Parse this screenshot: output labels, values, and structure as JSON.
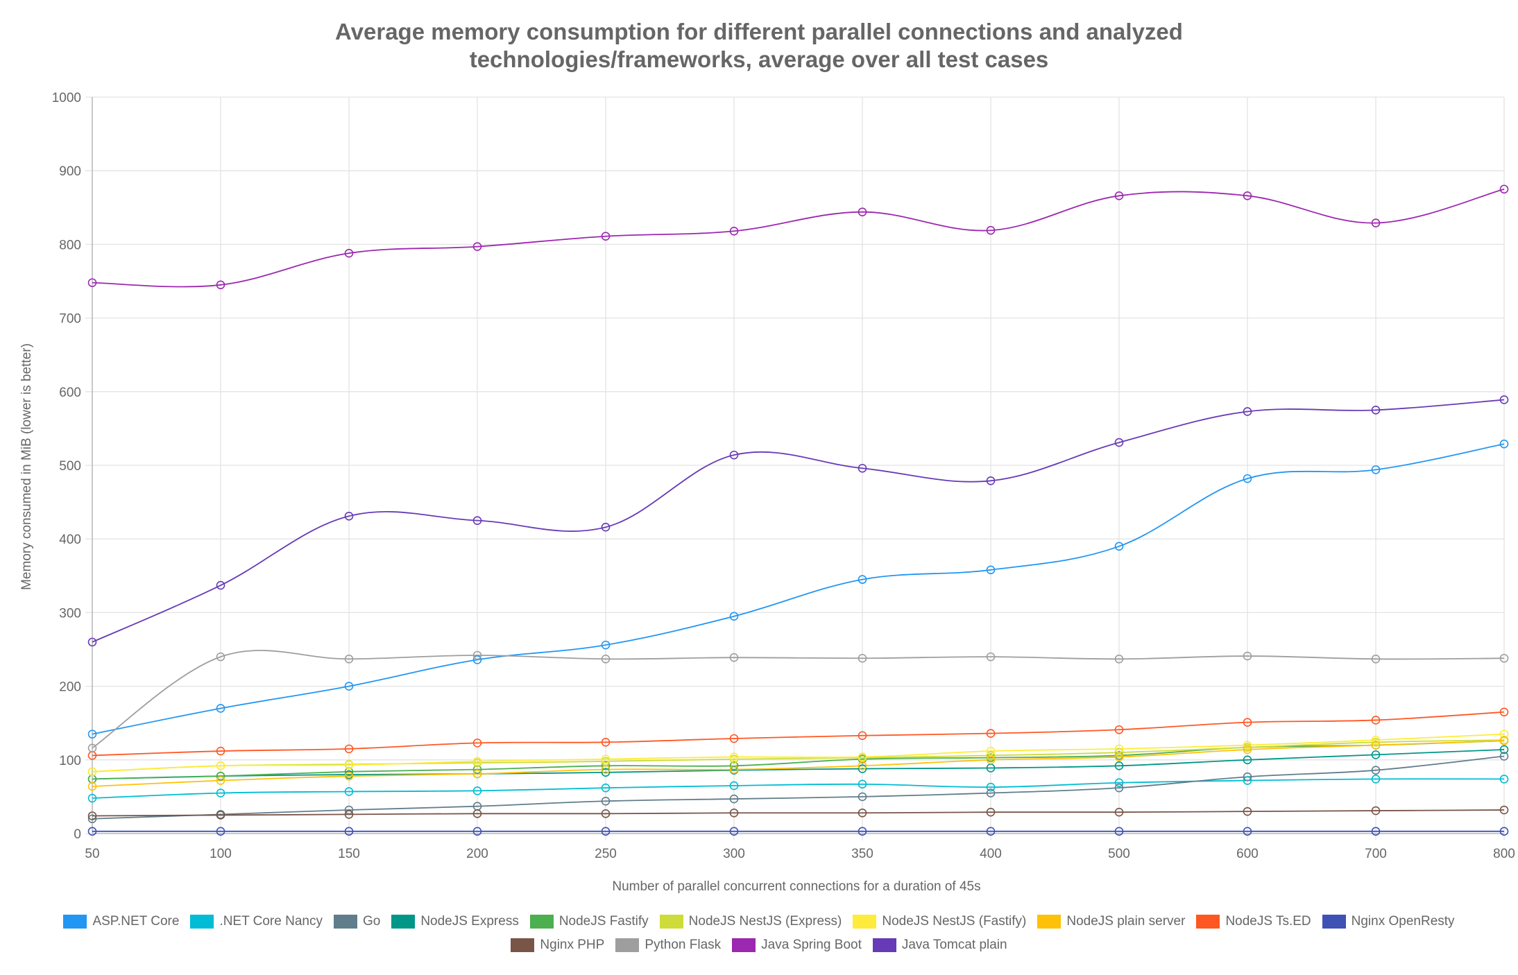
{
  "chart_data": {
    "type": "line",
    "title": [
      "Average memory consumption for different parallel connections and analyzed",
      "technologies/frameworks, average over all test cases"
    ],
    "xlabel": "Number of parallel concurrent connections for a duration of 45s",
    "ylabel": "Memory consumed in MiB (lower is better)",
    "categories": [
      "50",
      "100",
      "150",
      "200",
      "250",
      "300",
      "350",
      "400",
      "500",
      "600",
      "700",
      "800"
    ],
    "ylim": [
      0,
      1000
    ],
    "yticks": [
      "0",
      "100",
      "200",
      "300",
      "400",
      "500",
      "600",
      "700",
      "800",
      "900",
      "1000"
    ],
    "grid": true,
    "legend_position": "bottom",
    "series": [
      {
        "name": "ASP.NET Core",
        "color": "#2196F3",
        "values": [
          135,
          170,
          200,
          236,
          256,
          295,
          345,
          358,
          390,
          482,
          494,
          529
        ]
      },
      {
        "name": ".NET Core Nancy",
        "color": "#00BCD4",
        "values": [
          48,
          55,
          57,
          58,
          62,
          65,
          67,
          63,
          69,
          72,
          74,
          74
        ]
      },
      {
        "name": "Go",
        "color": "#607D8B",
        "values": [
          20,
          26,
          32,
          37,
          44,
          47,
          50,
          55,
          62,
          77,
          86,
          105
        ]
      },
      {
        "name": "NodeJS Express",
        "color": "#009688",
        "values": [
          74,
          78,
          80,
          81,
          83,
          86,
          88,
          89,
          92,
          100,
          107,
          114
        ]
      },
      {
        "name": "NodeJS Fastify",
        "color": "#4CAF50",
        "values": [
          74,
          78,
          84,
          87,
          92,
          92,
          101,
          103,
          106,
          117,
          120,
          126
        ]
      },
      {
        "name": "NodeJS NestJS (Express)",
        "color": "#CDDC39",
        "values": [
          84,
          92,
          94,
          96,
          98,
          101,
          103,
          106,
          110,
          117,
          124,
          127
        ]
      },
      {
        "name": "NodeJS NestJS (Fastify)",
        "color": "#FFEB3B",
        "values": [
          84,
          92,
          93,
          98,
          101,
          104,
          104,
          112,
          115,
          120,
          127,
          135
        ]
      },
      {
        "name": "NodeJS plain server",
        "color": "#FFC107",
        "values": [
          64,
          72,
          78,
          81,
          87,
          87,
          92,
          100,
          104,
          114,
          120,
          126
        ]
      },
      {
        "name": "NodeJS Ts.ED",
        "color": "#FF5722",
        "values": [
          106,
          112,
          115,
          123,
          124,
          129,
          133,
          136,
          141,
          151,
          154,
          165
        ]
      },
      {
        "name": "Nginx OpenResty",
        "color": "#3F51B5",
        "values": [
          3,
          3,
          3,
          3,
          3,
          3,
          3,
          3,
          3,
          3,
          3,
          3
        ]
      },
      {
        "name": "Nginx PHP",
        "color": "#795548",
        "values": [
          24,
          25,
          26,
          27,
          27,
          28,
          28,
          29,
          29,
          30,
          31,
          32
        ]
      },
      {
        "name": "Python Flask",
        "color": "#9E9E9E",
        "values": [
          116,
          240,
          237,
          242,
          237,
          239,
          238,
          240,
          237,
          241,
          237,
          238
        ]
      },
      {
        "name": "Java Spring Boot",
        "color": "#9C27B0",
        "values": [
          748,
          745,
          788,
          797,
          811,
          818,
          844,
          819,
          866,
          866,
          829,
          875
        ]
      },
      {
        "name": "Java Tomcat plain",
        "color": "#673AB7",
        "values": [
          260,
          337,
          431,
          425,
          416,
          514,
          496,
          479,
          531,
          573,
          575,
          589
        ]
      }
    ]
  }
}
